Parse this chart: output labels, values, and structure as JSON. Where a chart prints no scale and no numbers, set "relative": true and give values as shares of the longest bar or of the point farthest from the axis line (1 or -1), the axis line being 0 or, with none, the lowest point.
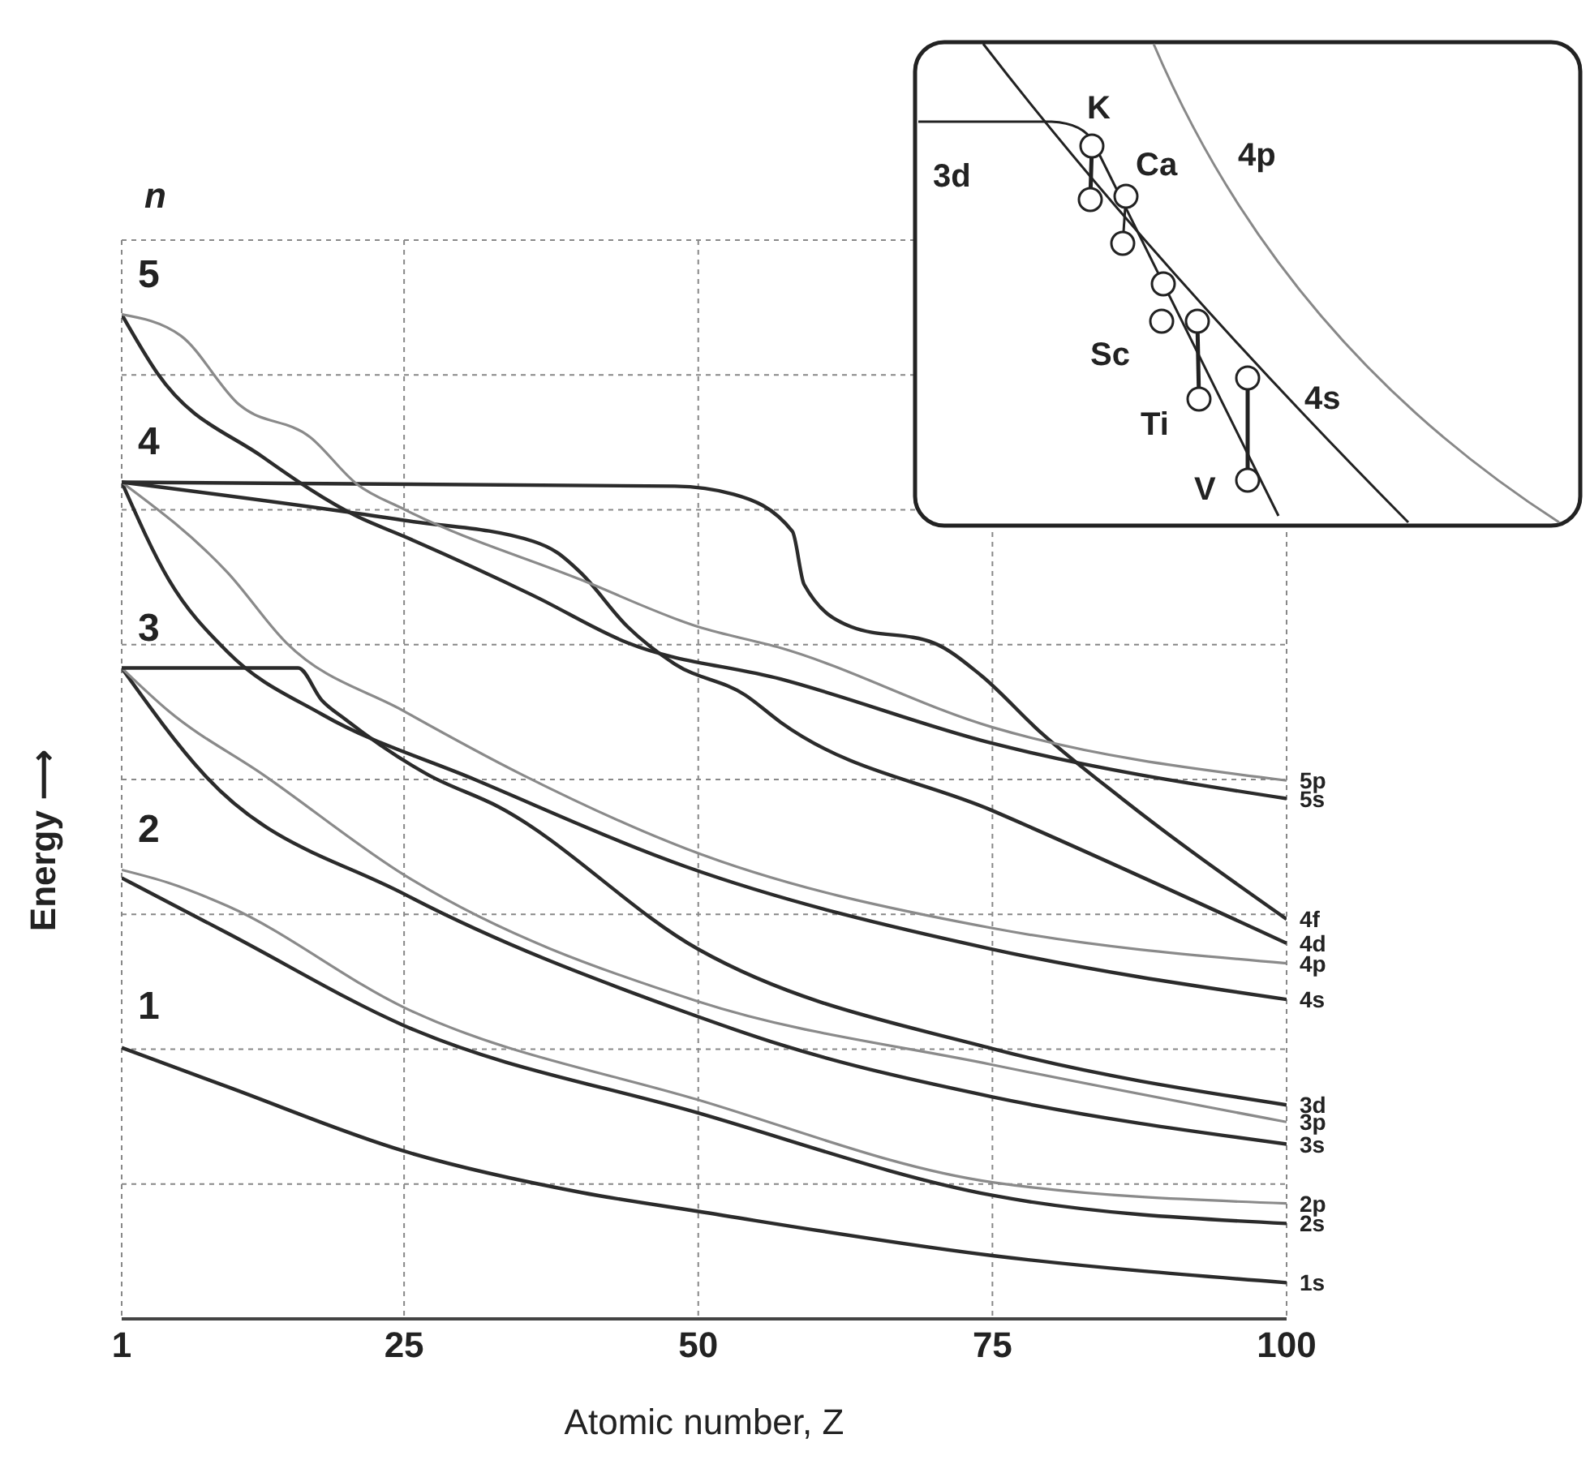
{
  "chart_data": {
    "type": "line",
    "xlabel": "Atomic number, Z",
    "ylabel": "Energy ⟶",
    "relative": true,
    "xlim": [
      1,
      100
    ],
    "xticks": [
      1,
      25,
      50,
      75,
      100
    ],
    "grid": true,
    "legend": false,
    "marker": "none",
    "line_style": "solid",
    "annotations": [
      "n",
      "1",
      "2",
      "3",
      "4",
      "5",
      "3d",
      "K",
      "Ca",
      "4p",
      "Sc",
      "Ti",
      "4s",
      "V"
    ],
    "series": [
      {
        "name": "1s",
        "color": "#2b2b2b",
        "x": [
          1,
          10,
          25,
          40,
          50,
          75,
          100
        ],
        "values": [
          0.27,
          0.231,
          0.167,
          0.126,
          0.107,
          0.063,
          0.036
        ]
      },
      {
        "name": "2s",
        "color": "#2b2b2b",
        "x": [
          1,
          10,
          25,
          50,
          75,
          100
        ],
        "values": [
          0.439,
          0.384,
          0.292,
          0.205,
          0.123,
          0.095
        ]
      },
      {
        "name": "2p",
        "color": "#8a8a8a",
        "x": [
          1,
          5,
          10,
          25,
          50,
          75,
          100
        ],
        "values": [
          0.447,
          0.434,
          0.411,
          0.31,
          0.218,
          0.136,
          0.115
        ]
      },
      {
        "name": "3s",
        "color": "#2b2b2b",
        "x": [
          1,
          8,
          25,
          49,
          57,
          75,
          100
        ],
        "values": [
          0.648,
          0.542,
          0.423,
          0.305,
          0.273,
          0.221,
          0.174
        ]
      },
      {
        "name": "3p",
        "color": "#8a8a8a",
        "x": [
          1,
          5,
          13,
          25,
          50,
          75,
          100
        ],
        "values": [
          0.648,
          0.605,
          0.542,
          0.442,
          0.316,
          0.253,
          0.196
        ]
      },
      {
        "name": "3d",
        "color": "#2b2b2b",
        "x": [
          1,
          16,
          18,
          20,
          27,
          33,
          50,
          75,
          100
        ],
        "values": [
          0.648,
          0.648,
          0.616,
          0.597,
          0.542,
          0.51,
          0.368,
          0.269,
          0.213
        ]
      },
      {
        "name": "4s",
        "color": "#2b2b2b",
        "x": [
          1,
          5,
          10,
          18,
          31,
          49,
          75,
          100
        ],
        "values": [
          0.833,
          0.736,
          0.664,
          0.602,
          0.537,
          0.45,
          0.368,
          0.318
        ]
      },
      {
        "name": "4p",
        "color": "#8a8a8a",
        "x": [
          1,
          10,
          15,
          25,
          35,
          49,
          75,
          100
        ],
        "values": [
          0.833,
          0.743,
          0.673,
          0.605,
          0.542,
          0.468,
          0.389,
          0.354
        ]
      },
      {
        "name": "4d",
        "color": "#2b2b2b",
        "x": [
          1,
          25,
          36,
          38,
          40,
          44,
          48,
          54,
          57,
          75,
          100
        ],
        "values": [
          0.833,
          0.795,
          0.774,
          0.763,
          0.743,
          0.689,
          0.652,
          0.621,
          0.594,
          0.506,
          0.374
        ]
      },
      {
        "name": "4f",
        "color": "#2b2b2b",
        "x": [
          1,
          48,
          53,
          58,
          59,
          63,
          70,
          74,
          79,
          86,
          100
        ],
        "values": [
          0.833,
          0.829,
          0.821,
          0.784,
          0.731,
          0.689,
          0.673,
          0.641,
          0.585,
          0.518,
          0.398
        ]
      },
      {
        "name": "5s",
        "color": "#2b2b2b",
        "x": [
          1,
          4,
          13,
          21,
          25,
          36,
          44,
          57,
          75,
          100
        ],
        "values": [
          1,
          0.942,
          0.858,
          0.799,
          0.779,
          0.72,
          0.673,
          0.637,
          0.573,
          0.518
        ]
      },
      {
        "name": "5p",
        "color": "#8a8a8a",
        "x": [
          1,
          6,
          11,
          17,
          21,
          25,
          40,
          50,
          57,
          75,
          100
        ],
        "values": [
          1,
          0.979,
          0.91,
          0.878,
          0.831,
          0.806,
          0.736,
          0.689,
          0.668,
          0.589,
          0.536
        ]
      }
    ]
  }
}
